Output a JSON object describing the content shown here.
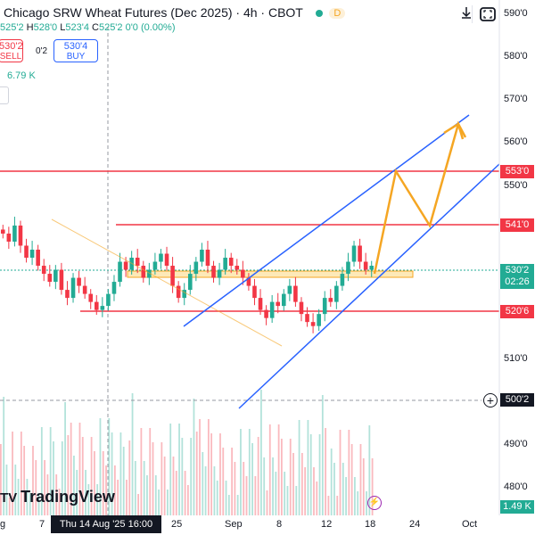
{
  "header": {
    "title": "Chicago SRW Wheat Futures (Dec 2025) · 4h · CBOT",
    "badge": "D"
  },
  "ohlc": {
    "open_value": "525'2",
    "high_key": "H",
    "high_value": "528'0",
    "low_key": "L",
    "low_value": "523'4",
    "close_key": "C",
    "close_value": "525'2",
    "change": "0'0 (0.00%)"
  },
  "trade": {
    "sell_price": "530'2",
    "sell_label": "SELL",
    "spread": "0'2",
    "buy_price": "530'4",
    "buy_label": "BUY"
  },
  "volume_label": "6.79 K",
  "toolbar": {
    "collapse_icon": "chevron-down-icon",
    "screenshot_icon": "camera-icon"
  },
  "price_axis": {
    "ticks": [
      "590'0",
      "580'0",
      "570'0",
      "560'0",
      "550'0",
      "510'0",
      "490'0",
      "480'0"
    ],
    "tags": [
      {
        "label": "553'0",
        "color": "#f23645"
      },
      {
        "label": "541'0",
        "color": "#f23645"
      },
      {
        "label": "530'2",
        "color": "#22ab94"
      },
      {
        "label": "02:26",
        "color": "#22ab94"
      },
      {
        "label": "520'6",
        "color": "#f23645"
      },
      {
        "label": "500'2",
        "color": "#131722"
      },
      {
        "label": "1.49 K",
        "color": "#22ab94"
      }
    ]
  },
  "time_axis": {
    "labels": [
      "g",
      "7",
      "25",
      "Sep",
      "8",
      "12",
      "18",
      "24",
      "Oct"
    ],
    "crosshair": "Thu 14 Aug '25   16:00"
  },
  "brand": {
    "logo_text": "TradingView",
    "logo_mark": "TV"
  },
  "chart_data": {
    "type": "candlestick",
    "symbol": "Chicago SRW Wheat Futures (Dec 2025)",
    "timeframe": "4h",
    "y_range": [
      475,
      593
    ],
    "last_price": "530'2",
    "horizontal_levels": [
      553.0,
      541.0,
      520.75
    ],
    "supply_demand_zone": [
      529.5,
      531.0
    ],
    "crosshair_price": "500'2",
    "channel_upper": [
      [
        21,
        514
      ],
      [
        98,
        567
      ]
    ],
    "channel_lower": [
      [
        44,
        500
      ],
      [
        100,
        552
      ]
    ],
    "projection": [
      [
        75,
        530
      ],
      [
        79,
        551
      ],
      [
        84,
        542
      ],
      [
        89,
        563
      ],
      [
        90,
        558
      ]
    ],
    "candles_close": [
      538,
      536,
      540,
      535,
      532,
      534,
      530,
      528,
      526,
      529,
      524,
      522,
      527,
      525,
      523,
      521,
      519,
      520,
      523,
      526,
      531,
      529,
      532,
      530,
      527,
      529,
      531,
      533,
      530,
      525,
      522,
      524,
      528,
      531,
      534,
      530,
      527,
      529,
      532,
      530,
      529,
      527,
      525,
      522,
      519,
      517,
      521,
      520,
      523,
      525,
      521,
      518,
      516,
      515,
      518,
      522,
      521,
      525,
      528,
      531,
      535,
      531,
      529,
      530
    ]
  }
}
